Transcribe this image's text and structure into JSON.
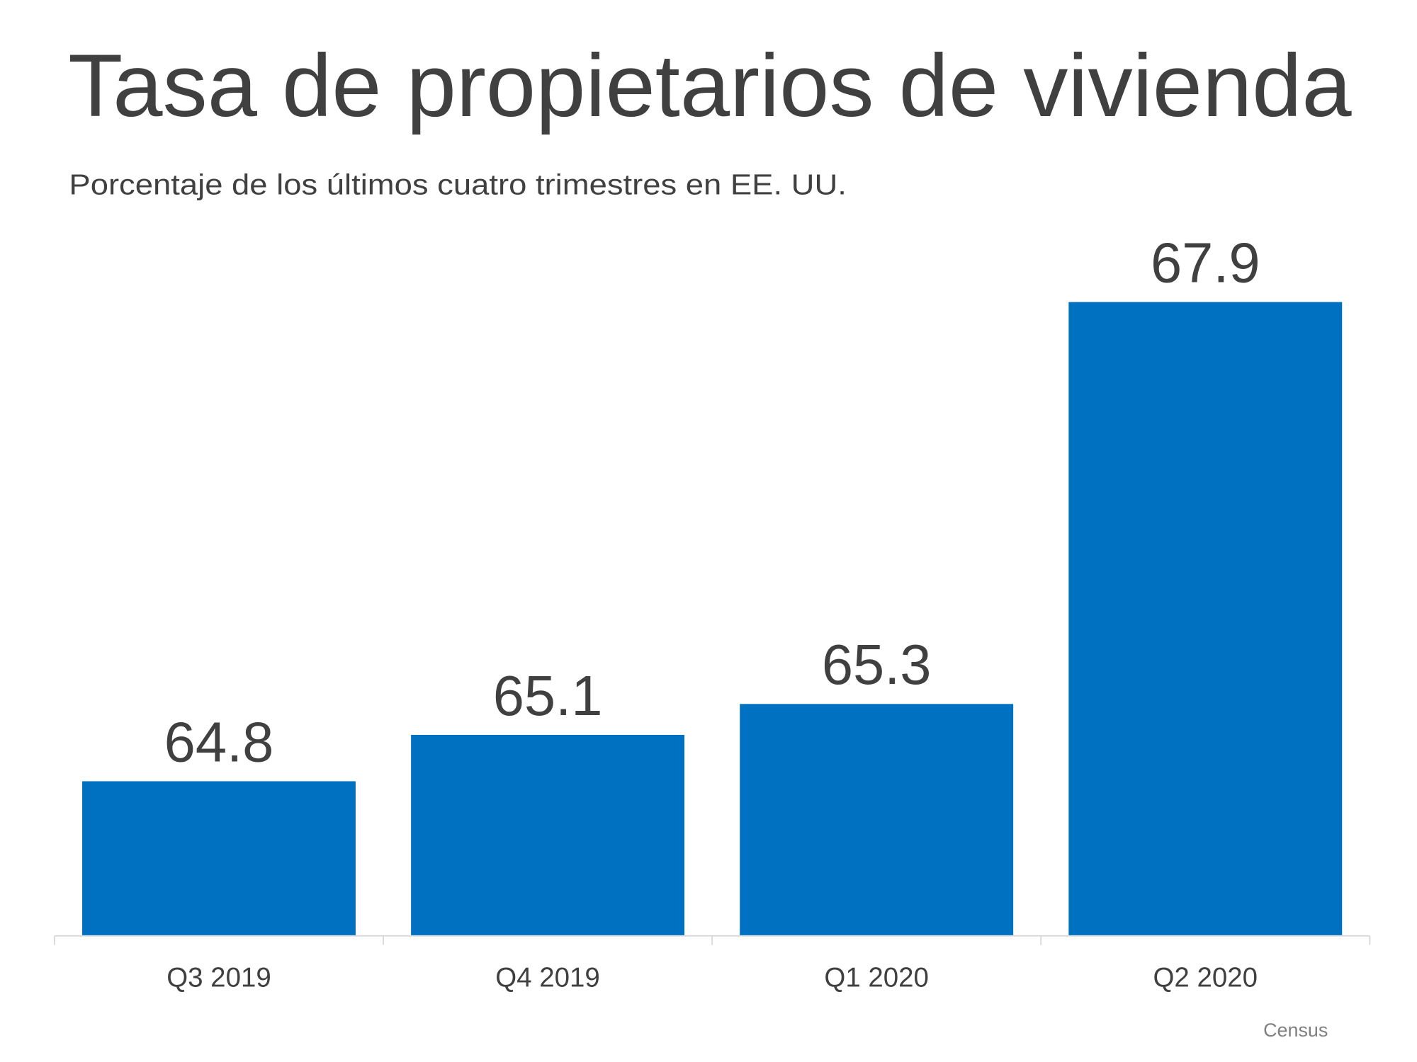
{
  "chart_data": {
    "type": "bar",
    "title": "Tasa de propietarios de vivienda",
    "subtitle": "Porcentaje de los últimos cuatro trimestres en EE. UU.",
    "categories": [
      "Q3 2019",
      "Q4 2019",
      "Q1 2020",
      "Q2 2020"
    ],
    "values": [
      64.8,
      65.1,
      65.3,
      67.9
    ],
    "data_labels": [
      "64.8",
      "65.1",
      "65.3",
      "67.9"
    ],
    "xlabel": "",
    "ylabel": "",
    "ylim": [
      63.8,
      68.2
    ],
    "grid": false,
    "y_axis_visible": false,
    "source": "Census",
    "colors": {
      "bar": "#0070C0",
      "text": "#404040",
      "axis": "#D9D9D9",
      "source": "#808080"
    }
  }
}
